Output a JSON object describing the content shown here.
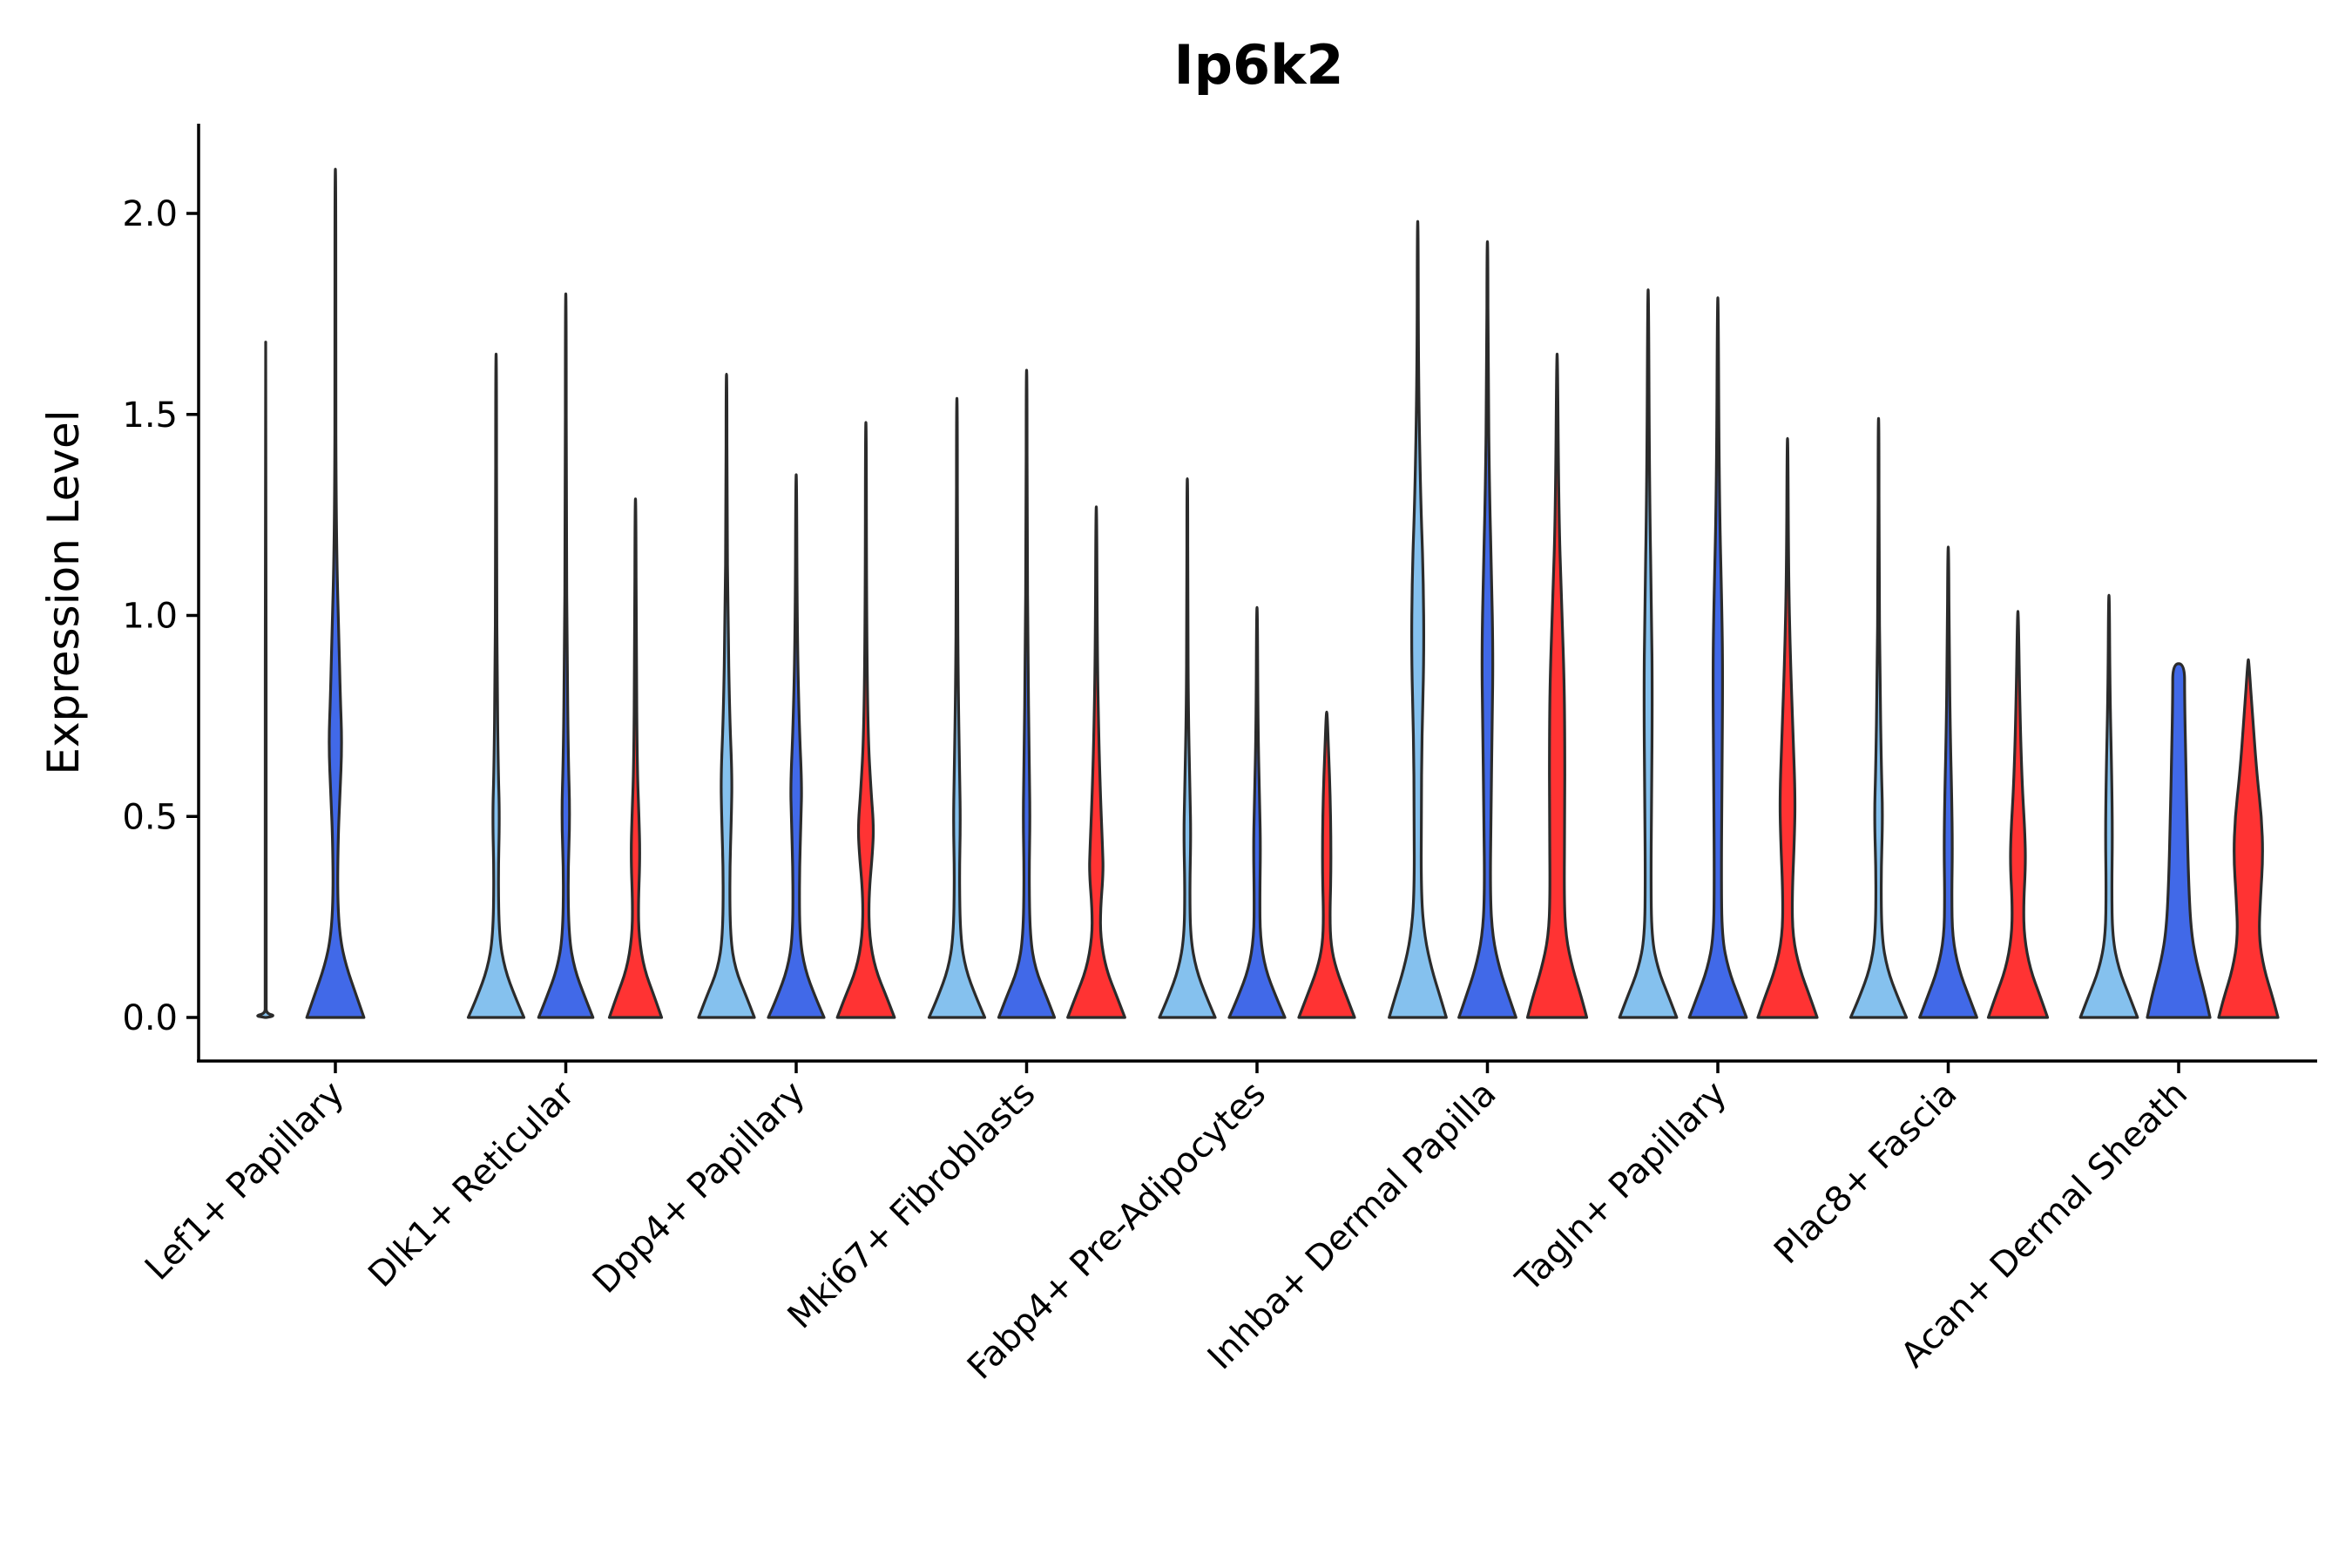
{
  "chart_data": {
    "type": "violin",
    "title": "Ip6k2",
    "xlabel": "",
    "ylabel": "Expression Level",
    "ylim": [
      -0.105,
      2.22
    ],
    "yticks": [
      0.0,
      0.5,
      1.0,
      1.5,
      2.0
    ],
    "ytick_labels": [
      "0.0",
      "0.5",
      "1.0",
      "1.5",
      "2.0"
    ],
    "categories": [
      "Lef1+ Papillary",
      "Dlk1+ Reticular",
      "Dpp4+ Papillary",
      "Mki67+ Fibroblasts",
      "Fabp4+ Pre-Adipocytes",
      "Inhba+ Dermal Papilla",
      "Tagln+ Papillary",
      "Plac8+ Fascia",
      "Acan+ Dermal Sheath"
    ],
    "series_colors": [
      "#85C1EE",
      "#4169E8",
      "#FF3333"
    ],
    "violins": [
      {
        "category": 0,
        "series": 0,
        "max": 1.68,
        "profile": [
          [
            0.0,
            0.02
          ],
          [
            0.004,
            0.3
          ],
          [
            0.01,
            0.02
          ],
          [
            0.03,
            0.012
          ],
          [
            1.68,
            0.012
          ]
        ]
      },
      {
        "category": 0,
        "series": 1,
        "max": 2.11,
        "profile": [
          [
            0.0,
            0.82
          ],
          [
            0.05,
            0.62
          ],
          [
            0.13,
            0.3
          ],
          [
            0.2,
            0.13
          ],
          [
            0.3,
            0.06
          ],
          [
            0.45,
            0.08
          ],
          [
            0.55,
            0.13
          ],
          [
            0.68,
            0.19
          ],
          [
            0.8,
            0.14
          ],
          [
            0.95,
            0.1
          ],
          [
            1.1,
            0.05
          ],
          [
            1.3,
            0.02
          ],
          [
            1.6,
            0.012
          ],
          [
            2.11,
            0.012
          ]
        ]
      },
      {
        "category": 1,
        "series": 0,
        "max": 1.65,
        "profile": [
          [
            0.0,
            0.8
          ],
          [
            0.05,
            0.55
          ],
          [
            0.12,
            0.25
          ],
          [
            0.2,
            0.09
          ],
          [
            0.35,
            0.06
          ],
          [
            0.5,
            0.1
          ],
          [
            0.62,
            0.06
          ],
          [
            0.85,
            0.03
          ],
          [
            1.1,
            0.015
          ],
          [
            1.65,
            0.012
          ]
        ]
      },
      {
        "category": 1,
        "series": 1,
        "max": 1.8,
        "profile": [
          [
            0.0,
            0.78
          ],
          [
            0.05,
            0.55
          ],
          [
            0.12,
            0.25
          ],
          [
            0.2,
            0.09
          ],
          [
            0.35,
            0.06
          ],
          [
            0.5,
            0.12
          ],
          [
            0.65,
            0.07
          ],
          [
            0.9,
            0.04
          ],
          [
            1.2,
            0.015
          ],
          [
            1.8,
            0.012
          ]
        ]
      },
      {
        "category": 1,
        "series": 2,
        "max": 1.29,
        "profile": [
          [
            0.0,
            0.75
          ],
          [
            0.05,
            0.55
          ],
          [
            0.12,
            0.25
          ],
          [
            0.2,
            0.1
          ],
          [
            0.28,
            0.08
          ],
          [
            0.4,
            0.13
          ],
          [
            0.5,
            0.1
          ],
          [
            0.62,
            0.05
          ],
          [
            0.9,
            0.025
          ],
          [
            1.29,
            0.012
          ]
        ]
      },
      {
        "category": 2,
        "series": 0,
        "max": 1.6,
        "profile": [
          [
            0.0,
            0.8
          ],
          [
            0.05,
            0.58
          ],
          [
            0.12,
            0.25
          ],
          [
            0.2,
            0.11
          ],
          [
            0.35,
            0.09
          ],
          [
            0.5,
            0.14
          ],
          [
            0.6,
            0.16
          ],
          [
            0.75,
            0.09
          ],
          [
            1.0,
            0.04
          ],
          [
            1.25,
            0.015
          ],
          [
            1.6,
            0.012
          ]
        ]
      },
      {
        "category": 2,
        "series": 1,
        "max": 1.35,
        "profile": [
          [
            0.0,
            0.8
          ],
          [
            0.05,
            0.55
          ],
          [
            0.12,
            0.25
          ],
          [
            0.2,
            0.1
          ],
          [
            0.35,
            0.09
          ],
          [
            0.5,
            0.14
          ],
          [
            0.58,
            0.16
          ],
          [
            0.72,
            0.09
          ],
          [
            0.95,
            0.03
          ],
          [
            1.35,
            0.012
          ]
        ]
      },
      {
        "category": 2,
        "series": 2,
        "max": 1.48,
        "profile": [
          [
            0.0,
            0.82
          ],
          [
            0.05,
            0.6
          ],
          [
            0.12,
            0.27
          ],
          [
            0.2,
            0.1
          ],
          [
            0.3,
            0.08
          ],
          [
            0.42,
            0.2
          ],
          [
            0.48,
            0.22
          ],
          [
            0.56,
            0.15
          ],
          [
            0.7,
            0.06
          ],
          [
            1.0,
            0.02
          ],
          [
            1.48,
            0.012
          ]
        ]
      },
      {
        "category": 3,
        "series": 0,
        "max": 1.54,
        "profile": [
          [
            0.0,
            0.8
          ],
          [
            0.05,
            0.55
          ],
          [
            0.12,
            0.25
          ],
          [
            0.2,
            0.1
          ],
          [
            0.35,
            0.07
          ],
          [
            0.48,
            0.1
          ],
          [
            0.6,
            0.08
          ],
          [
            0.8,
            0.04
          ],
          [
            1.1,
            0.015
          ],
          [
            1.54,
            0.012
          ]
        ]
      },
      {
        "category": 3,
        "series": 1,
        "max": 1.61,
        "profile": [
          [
            0.0,
            0.8
          ],
          [
            0.05,
            0.58
          ],
          [
            0.12,
            0.25
          ],
          [
            0.2,
            0.1
          ],
          [
            0.35,
            0.07
          ],
          [
            0.5,
            0.1
          ],
          [
            0.65,
            0.07
          ],
          [
            0.9,
            0.04
          ],
          [
            1.2,
            0.015
          ],
          [
            1.61,
            0.012
          ]
        ]
      },
      {
        "category": 3,
        "series": 2,
        "max": 1.27,
        "profile": [
          [
            0.0,
            0.82
          ],
          [
            0.05,
            0.6
          ],
          [
            0.12,
            0.28
          ],
          [
            0.2,
            0.12
          ],
          [
            0.27,
            0.12
          ],
          [
            0.36,
            0.2
          ],
          [
            0.42,
            0.18
          ],
          [
            0.55,
            0.12
          ],
          [
            0.7,
            0.07
          ],
          [
            0.9,
            0.03
          ],
          [
            1.27,
            0.012
          ]
        ]
      },
      {
        "category": 4,
        "series": 0,
        "max": 1.34,
        "profile": [
          [
            0.0,
            0.8
          ],
          [
            0.05,
            0.55
          ],
          [
            0.12,
            0.25
          ],
          [
            0.2,
            0.09
          ],
          [
            0.32,
            0.07
          ],
          [
            0.45,
            0.1
          ],
          [
            0.55,
            0.08
          ],
          [
            0.75,
            0.03
          ],
          [
            1.0,
            0.015
          ],
          [
            1.34,
            0.012
          ]
        ]
      },
      {
        "category": 4,
        "series": 1,
        "max": 1.02,
        "profile": [
          [
            0.0,
            0.8
          ],
          [
            0.05,
            0.55
          ],
          [
            0.12,
            0.24
          ],
          [
            0.2,
            0.09
          ],
          [
            0.3,
            0.08
          ],
          [
            0.42,
            0.1
          ],
          [
            0.52,
            0.08
          ],
          [
            0.7,
            0.03
          ],
          [
            1.02,
            0.012
          ]
        ]
      },
      {
        "category": 4,
        "series": 2,
        "max": 0.76,
        "profile": [
          [
            0.0,
            0.8
          ],
          [
            0.05,
            0.58
          ],
          [
            0.12,
            0.27
          ],
          [
            0.18,
            0.12
          ],
          [
            0.25,
            0.09
          ],
          [
            0.35,
            0.12
          ],
          [
            0.45,
            0.12
          ],
          [
            0.55,
            0.1
          ],
          [
            0.65,
            0.06
          ],
          [
            0.76,
            0.012
          ]
        ]
      },
      {
        "category": 5,
        "series": 0,
        "max": 1.98,
        "profile": [
          [
            0.0,
            0.82
          ],
          [
            0.05,
            0.65
          ],
          [
            0.12,
            0.4
          ],
          [
            0.2,
            0.2
          ],
          [
            0.3,
            0.1
          ],
          [
            0.5,
            0.1
          ],
          [
            0.7,
            0.12
          ],
          [
            0.9,
            0.18
          ],
          [
            1.1,
            0.16
          ],
          [
            1.3,
            0.08
          ],
          [
            1.6,
            0.02
          ],
          [
            1.98,
            0.012
          ]
        ]
      },
      {
        "category": 5,
        "series": 1,
        "max": 1.93,
        "profile": [
          [
            0.0,
            0.82
          ],
          [
            0.05,
            0.62
          ],
          [
            0.12,
            0.35
          ],
          [
            0.2,
            0.15
          ],
          [
            0.3,
            0.08
          ],
          [
            0.5,
            0.1
          ],
          [
            0.75,
            0.14
          ],
          [
            0.9,
            0.16
          ],
          [
            1.1,
            0.12
          ],
          [
            1.3,
            0.06
          ],
          [
            1.6,
            0.02
          ],
          [
            1.93,
            0.012
          ]
        ]
      },
      {
        "category": 5,
        "series": 2,
        "max": 1.65,
        "profile": [
          [
            0.0,
            0.85
          ],
          [
            0.05,
            0.7
          ],
          [
            0.12,
            0.45
          ],
          [
            0.2,
            0.25
          ],
          [
            0.3,
            0.2
          ],
          [
            0.5,
            0.22
          ],
          [
            0.7,
            0.22
          ],
          [
            0.85,
            0.2
          ],
          [
            1.05,
            0.12
          ],
          [
            1.25,
            0.05
          ],
          [
            1.65,
            0.012
          ]
        ]
      },
      {
        "category": 6,
        "series": 0,
        "max": 1.81,
        "profile": [
          [
            0.0,
            0.82
          ],
          [
            0.05,
            0.6
          ],
          [
            0.12,
            0.28
          ],
          [
            0.2,
            0.1
          ],
          [
            0.35,
            0.08
          ],
          [
            0.55,
            0.1
          ],
          [
            0.8,
            0.12
          ],
          [
            1.0,
            0.1
          ],
          [
            1.3,
            0.04
          ],
          [
            1.81,
            0.012
          ]
        ]
      },
      {
        "category": 6,
        "series": 1,
        "max": 1.79,
        "profile": [
          [
            0.0,
            0.82
          ],
          [
            0.05,
            0.6
          ],
          [
            0.12,
            0.3
          ],
          [
            0.2,
            0.12
          ],
          [
            0.35,
            0.1
          ],
          [
            0.6,
            0.12
          ],
          [
            0.85,
            0.14
          ],
          [
            1.0,
            0.12
          ],
          [
            1.3,
            0.04
          ],
          [
            1.79,
            0.012
          ]
        ]
      },
      {
        "category": 6,
        "series": 2,
        "max": 1.44,
        "profile": [
          [
            0.0,
            0.85
          ],
          [
            0.05,
            0.65
          ],
          [
            0.12,
            0.35
          ],
          [
            0.2,
            0.15
          ],
          [
            0.3,
            0.13
          ],
          [
            0.45,
            0.2
          ],
          [
            0.55,
            0.22
          ],
          [
            0.7,
            0.16
          ],
          [
            0.9,
            0.08
          ],
          [
            1.1,
            0.03
          ],
          [
            1.44,
            0.012
          ]
        ]
      },
      {
        "category": 7,
        "series": 0,
        "max": 1.49,
        "profile": [
          [
            0.0,
            0.8
          ],
          [
            0.05,
            0.55
          ],
          [
            0.12,
            0.25
          ],
          [
            0.2,
            0.09
          ],
          [
            0.35,
            0.07
          ],
          [
            0.5,
            0.12
          ],
          [
            0.62,
            0.08
          ],
          [
            0.85,
            0.04
          ],
          [
            1.1,
            0.015
          ],
          [
            1.49,
            0.012
          ]
        ]
      },
      {
        "category": 7,
        "series": 1,
        "max": 1.17,
        "profile": [
          [
            0.0,
            0.82
          ],
          [
            0.05,
            0.6
          ],
          [
            0.12,
            0.3
          ],
          [
            0.2,
            0.12
          ],
          [
            0.3,
            0.1
          ],
          [
            0.42,
            0.12
          ],
          [
            0.55,
            0.1
          ],
          [
            0.7,
            0.06
          ],
          [
            0.9,
            0.03
          ],
          [
            1.17,
            0.012
          ]
        ]
      },
      {
        "category": 7,
        "series": 2,
        "max": 1.01,
        "profile": [
          [
            0.0,
            0.85
          ],
          [
            0.05,
            0.65
          ],
          [
            0.12,
            0.35
          ],
          [
            0.2,
            0.18
          ],
          [
            0.28,
            0.16
          ],
          [
            0.38,
            0.22
          ],
          [
            0.46,
            0.2
          ],
          [
            0.58,
            0.12
          ],
          [
            0.75,
            0.06
          ],
          [
            1.01,
            0.012
          ]
        ]
      },
      {
        "category": 8,
        "series": 0,
        "max": 1.05,
        "profile": [
          [
            0.0,
            0.82
          ],
          [
            0.05,
            0.6
          ],
          [
            0.12,
            0.28
          ],
          [
            0.2,
            0.1
          ],
          [
            0.32,
            0.08
          ],
          [
            0.45,
            0.1
          ],
          [
            0.6,
            0.08
          ],
          [
            0.8,
            0.03
          ],
          [
            1.05,
            0.012
          ]
        ]
      },
      {
        "category": 8,
        "series": 1,
        "max": 0.88,
        "profile": [
          [
            0.0,
            0.9
          ],
          [
            0.06,
            0.75
          ],
          [
            0.14,
            0.5
          ],
          [
            0.22,
            0.35
          ],
          [
            0.35,
            0.28
          ],
          [
            0.5,
            0.24
          ],
          [
            0.65,
            0.2
          ],
          [
            0.8,
            0.17
          ],
          [
            0.88,
            0.17
          ]
        ]
      },
      {
        "category": 8,
        "series": 2,
        "max": 0.89,
        "profile": [
          [
            0.0,
            0.85
          ],
          [
            0.05,
            0.7
          ],
          [
            0.12,
            0.45
          ],
          [
            0.2,
            0.3
          ],
          [
            0.3,
            0.35
          ],
          [
            0.4,
            0.42
          ],
          [
            0.5,
            0.38
          ],
          [
            0.6,
            0.25
          ],
          [
            0.75,
            0.12
          ],
          [
            0.89,
            0.012
          ]
        ]
      }
    ]
  }
}
